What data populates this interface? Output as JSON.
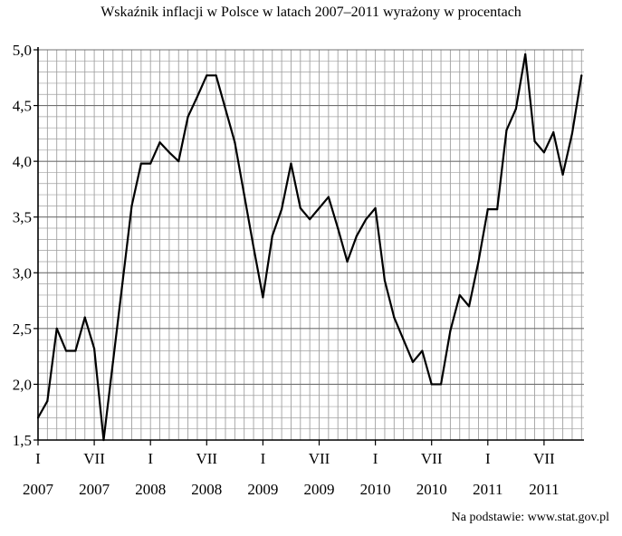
{
  "chart_data": {
    "type": "line",
    "title": "Wskaźnik inflacji w Polsce w latach 2007–2011 wyrażony w procentach",
    "xlabel": "",
    "ylabel": "",
    "ylim": [
      1.5,
      5.0
    ],
    "y_ticks": [
      "1,5",
      "2,0",
      "2,5",
      "3,0",
      "3,5",
      "4,0",
      "4,5",
      "5,0"
    ],
    "x_tick_labels": [
      {
        "month": "I",
        "year": "2007",
        "index": 0
      },
      {
        "month": "VII",
        "year": "2007",
        "index": 6
      },
      {
        "month": "I",
        "year": "2008",
        "index": 12
      },
      {
        "month": "VII",
        "year": "2008",
        "index": 18
      },
      {
        "month": "I",
        "year": "2009",
        "index": 24
      },
      {
        "month": "VII",
        "year": "2009",
        "index": 30
      },
      {
        "month": "I",
        "year": "2010",
        "index": 36
      },
      {
        "month": "VII",
        "year": "2010",
        "index": 42
      },
      {
        "month": "I",
        "year": "2011",
        "index": 48
      },
      {
        "month": "VII",
        "year": "2011",
        "index": 54
      }
    ],
    "grid": true,
    "legend": "none",
    "series": [
      {
        "values": [
          1.7,
          1.85,
          2.5,
          2.3,
          2.3,
          2.6,
          2.32,
          1.5,
          2.2,
          2.9,
          3.6,
          3.98,
          3.98,
          4.17,
          4.08,
          4.0,
          4.4,
          4.58,
          4.77,
          4.77,
          4.47,
          4.17,
          3.7,
          3.23,
          2.78,
          3.33,
          3.57,
          3.98,
          3.58,
          3.48,
          3.58,
          3.68,
          3.4,
          3.1,
          3.33,
          3.48,
          3.58,
          2.93,
          2.6,
          2.4,
          2.2,
          2.3,
          2.0,
          2.0,
          2.48,
          2.8,
          2.7,
          3.1,
          3.57,
          3.57,
          4.28,
          4.47,
          4.96,
          4.18,
          4.08,
          4.26,
          3.88,
          4.25,
          4.77
        ]
      }
    ]
  },
  "source_note": "Na podstawie: www.stat.gov.pl",
  "colors": {
    "line": "#000000",
    "grid": "#a0a0a0",
    "axis": "#000000"
  }
}
